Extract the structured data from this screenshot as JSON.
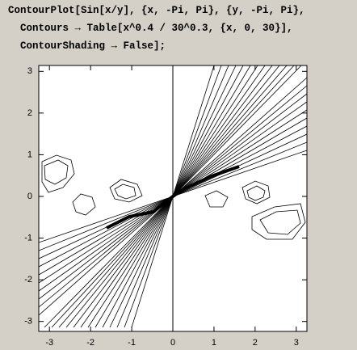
{
  "code": [
    "ContourPlot[Sin[x/y], {x, -Pi, Pi}, {y, -Pi, Pi},",
    "  Contours → Table[x^0.4 / 30^0.3, {x, 0, 30}],",
    "  ContourShading → False];"
  ],
  "plot": {
    "xlim": [
      -3.14159,
      3.14159
    ],
    "ylim": [
      -3.14159,
      3.14159
    ],
    "xticks": [
      -3,
      -2,
      -1,
      0,
      1,
      2,
      3
    ],
    "yticks": [
      -3,
      -2,
      -1,
      0,
      1,
      2,
      3
    ]
  }
}
